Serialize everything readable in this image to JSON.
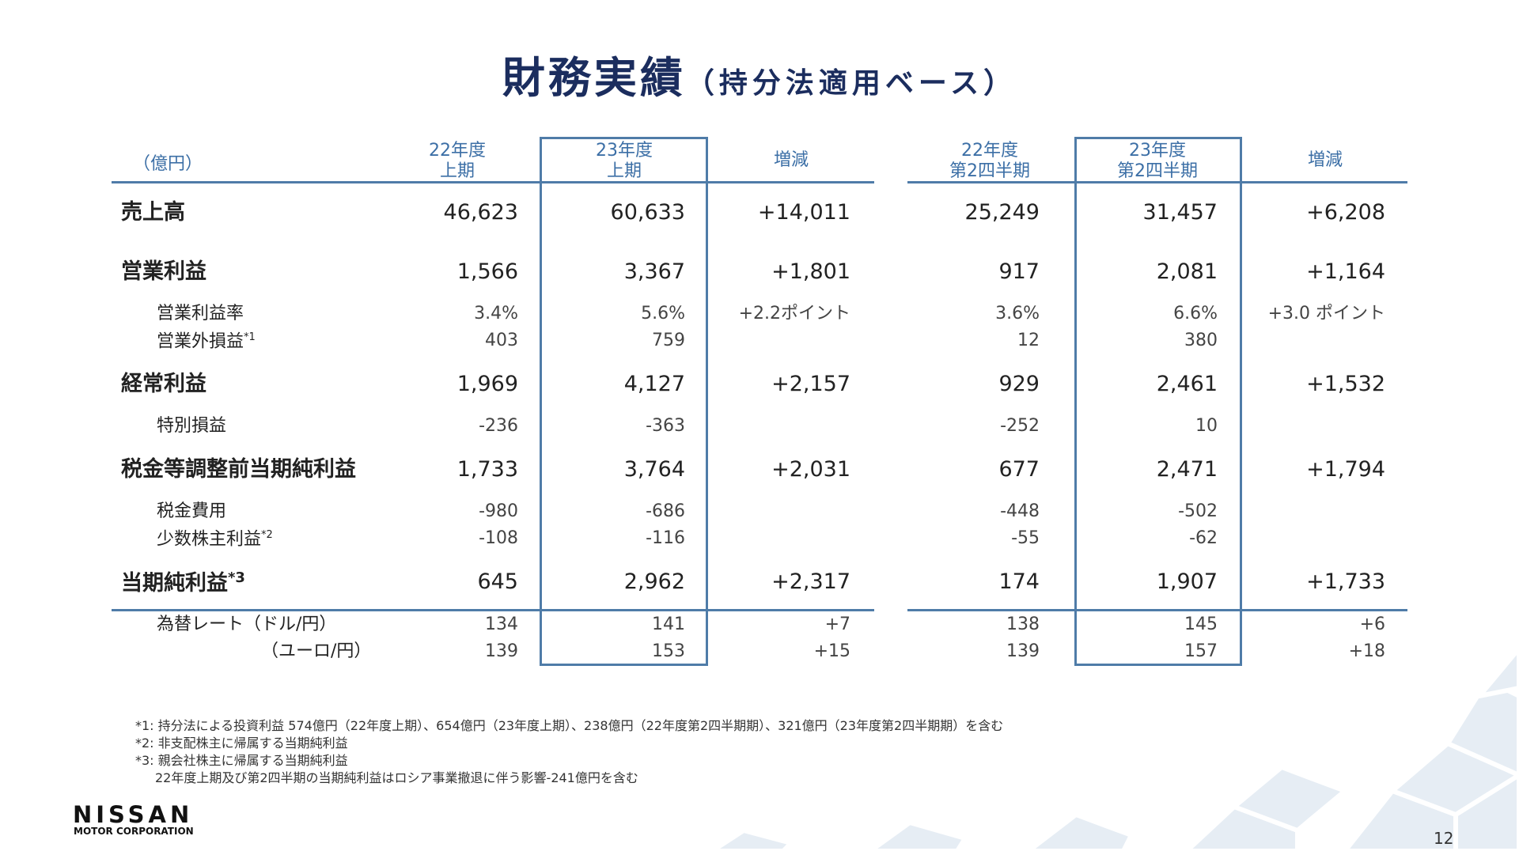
{
  "header": {
    "title": "財務実績",
    "subtitle": "（持分法適用ベース）"
  },
  "table": {
    "unit": "（億円）",
    "columns": [
      [
        "22年度",
        "上期"
      ],
      [
        "23年度",
        "上期"
      ],
      [
        "増減"
      ],
      [
        "22年度",
        "第2四半期"
      ],
      [
        "23年度",
        "第2四半期"
      ],
      [
        "増減"
      ]
    ],
    "rows": [
      {
        "label": "売上高",
        "cells": [
          "46,623",
          "60,633",
          "+14,011",
          "25,249",
          "31,457",
          "+6,208"
        ]
      },
      {
        "label": "営業利益",
        "cells": [
          "1,566",
          "3,367",
          "+1,801",
          "917",
          "2,081",
          "+1,164"
        ]
      },
      {
        "label": "営業利益率",
        "cells": [
          "3.4%",
          "5.6%",
          "+2.2ポイント",
          "3.6%",
          "6.6%",
          "+3.0 ポイント"
        ]
      },
      {
        "label": "営業外損益",
        "note": "*1",
        "cells": [
          "403",
          "759",
          null,
          "12",
          "380",
          null
        ]
      },
      {
        "label": "経常利益",
        "cells": [
          "1,969",
          "4,127",
          "+2,157",
          "929",
          "2,461",
          "+1,532"
        ]
      },
      {
        "label": "特別損益",
        "cells": [
          "-236",
          "-363",
          null,
          "-252",
          "10",
          null
        ]
      },
      {
        "label": "税金等調整前当期純利益",
        "cells": [
          "1,733",
          "3,764",
          "+2,031",
          "677",
          "2,471",
          "+1,794"
        ]
      },
      {
        "label": "税金費用",
        "cells": [
          "-980",
          "-686",
          null,
          "-448",
          "-502",
          null
        ]
      },
      {
        "label": "少数株主利益",
        "note": "*2",
        "cells": [
          "-108",
          "-116",
          null,
          "-55",
          "-62",
          null
        ]
      },
      {
        "label": "当期純利益",
        "note": "*3",
        "cells": [
          "645",
          "2,962",
          "+2,317",
          "174",
          "1,907",
          "+1,733"
        ]
      },
      {
        "label": "為替レート（ドル/円）",
        "cells": [
          "134",
          "141",
          "+7",
          "138",
          "145",
          "+6"
        ]
      },
      {
        "label": "（ユーロ/円）",
        "cells": [
          "139",
          "153",
          "+15",
          "139",
          "157",
          "+18"
        ]
      }
    ]
  },
  "footnotes": [
    "*1: 持分法による投資利益 574億円（22年度上期）、654億円（23年度上期）、238億円（22年度第2四半期期）、321億円（23年度第2四半期期）を含む",
    "*2: 非支配株主に帰属する当期純利益",
    "*3: 親会社株主に帰属する当期純利益",
    "22年度上期及び第2四半期の当期純利益はロシア事業撤退に伴う影響-241億円を含む"
  ],
  "logo": {
    "name": "NISSAN",
    "sub": "MOTOR CORPORATION"
  },
  "page_number": "12"
}
